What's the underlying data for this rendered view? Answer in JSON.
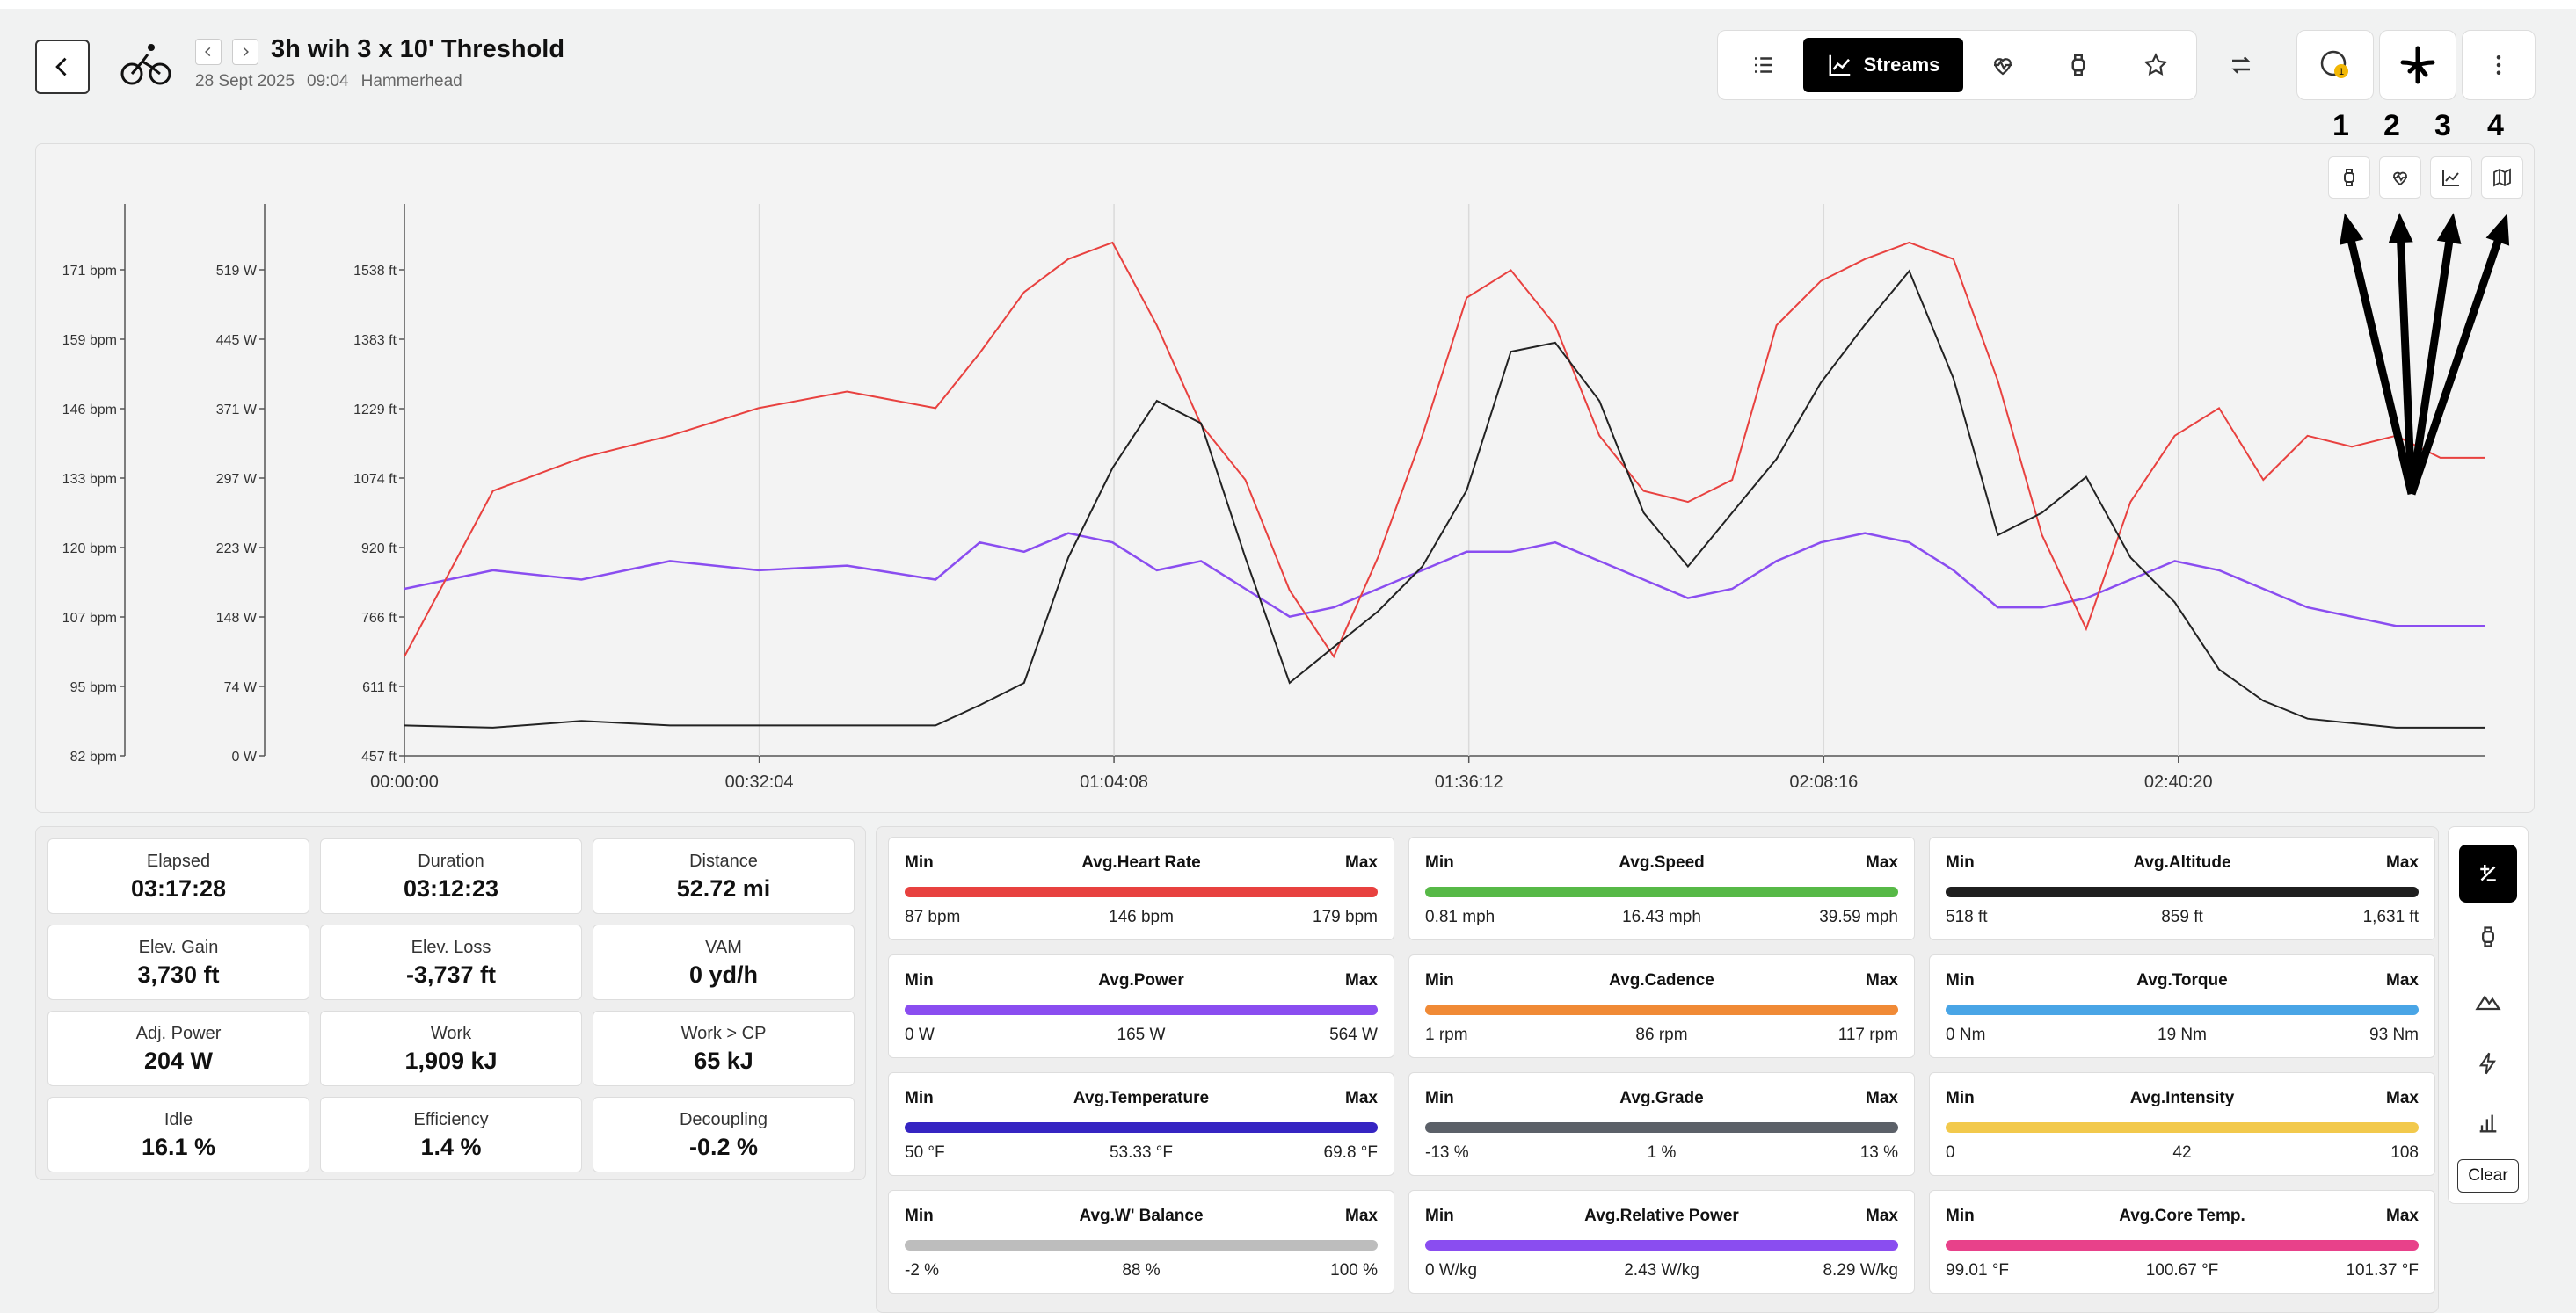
{
  "header": {
    "title": "3h wih 3 x 10' Threshold",
    "date": "28 Sept 2025",
    "time": "09:04",
    "device": "Hammerhead",
    "streams_label": "Streams",
    "notification_count": "1"
  },
  "chart": {
    "annotations": [
      "1",
      "2",
      "3",
      "4"
    ],
    "hr_ticks": [
      "171 bpm",
      "159 bpm",
      "146 bpm",
      "133 bpm",
      "120 bpm",
      "107 bpm",
      "95 bpm",
      "82 bpm"
    ],
    "power_ticks": [
      "519 W",
      "445 W",
      "371 W",
      "297 W",
      "223 W",
      "148 W",
      "74 W",
      "0 W"
    ],
    "alt_ticks": [
      "1538 ft",
      "1383 ft",
      "1229 ft",
      "1074 ft",
      "920 ft",
      "766 ft",
      "611 ft",
      "457 ft"
    ],
    "time_ticks": [
      "00:00:00",
      "00:32:04",
      "01:04:08",
      "01:36:12",
      "02:08:16",
      "02:40:20"
    ],
    "colors": {
      "hr": "#e8413f",
      "power": "#8a4df0",
      "altitude": "#222222"
    }
  },
  "chart_data": {
    "type": "line",
    "x_label_ticks": [
      "00:00:00",
      "00:32:04",
      "01:04:08",
      "01:36:12",
      "02:08:16",
      "02:40:20"
    ],
    "y_axes": [
      {
        "name": "Heart Rate",
        "unit": "bpm",
        "range": [
          82,
          182
        ]
      },
      {
        "name": "Power",
        "unit": "W",
        "range": [
          0,
          595
        ]
      },
      {
        "name": "Altitude",
        "unit": "ft",
        "range": [
          457,
          1690
        ]
      }
    ],
    "x_minutes": [
      0,
      8,
      16,
      24,
      32,
      40,
      48,
      52,
      56,
      60,
      64,
      68,
      72,
      76,
      80,
      84,
      88,
      92,
      96,
      100,
      104,
      108,
      112,
      116,
      120,
      124,
      128,
      132,
      136,
      140,
      144,
      148,
      152,
      156,
      160,
      164,
      168,
      172,
      176,
      180,
      184,
      188
    ],
    "series": [
      {
        "name": "Heart Rate",
        "axis": 0,
        "values": [
          100,
          130,
          136,
          140,
          145,
          148,
          145,
          155,
          166,
          172,
          175,
          160,
          142,
          132,
          112,
          100,
          118,
          140,
          165,
          170,
          160,
          140,
          130,
          128,
          132,
          160,
          168,
          172,
          175,
          172,
          150,
          122,
          105,
          128,
          140,
          145,
          132,
          140,
          138,
          140,
          136,
          136
        ]
      },
      {
        "name": "Power",
        "axis": 1,
        "values": [
          180,
          200,
          190,
          210,
          200,
          205,
          190,
          230,
          220,
          240,
          230,
          200,
          210,
          180,
          150,
          160,
          180,
          200,
          220,
          220,
          230,
          210,
          190,
          170,
          180,
          210,
          230,
          240,
          230,
          200,
          160,
          160,
          170,
          190,
          210,
          200,
          180,
          160,
          150,
          140,
          140,
          140
        ]
      },
      {
        "name": "Altitude",
        "axis": 2,
        "values": [
          525,
          520,
          535,
          525,
          525,
          525,
          525,
          570,
          620,
          900,
          1100,
          1250,
          1200,
          900,
          620,
          700,
          780,
          880,
          1050,
          1360,
          1380,
          1250,
          1000,
          880,
          1000,
          1120,
          1290,
          1420,
          1540,
          1300,
          950,
          1000,
          1080,
          900,
          800,
          650,
          580,
          540,
          530,
          520,
          520,
          520
        ]
      }
    ]
  },
  "stats": [
    {
      "label": "Elapsed",
      "value": "03:17:28"
    },
    {
      "label": "Duration",
      "value": "03:12:23"
    },
    {
      "label": "Distance",
      "value": "52.72 mi"
    },
    {
      "label": "Elev. Gain",
      "value": "3,730 ft"
    },
    {
      "label": "Elev. Loss",
      "value": "-3,737 ft"
    },
    {
      "label": "VAM",
      "value": "0 yd/h"
    },
    {
      "label": "Adj. Power",
      "value": "204 W"
    },
    {
      "label": "Work",
      "value": "1,909 kJ"
    },
    {
      "label": "Work > CP",
      "value": "65 kJ"
    },
    {
      "label": "Idle",
      "value": "16.1 %"
    },
    {
      "label": "Efficiency",
      "value": "1.4 %"
    },
    {
      "label": "Decoupling",
      "value": "-0.2 %"
    }
  ],
  "metrics": [
    {
      "name": "Avg.Heart Rate",
      "min": "87 bpm",
      "avg": "146 bpm",
      "max": "179 bpm",
      "color": "#e8413f"
    },
    {
      "name": "Avg.Speed",
      "min": "0.81 mph",
      "avg": "16.43 mph",
      "max": "39.59 mph",
      "color": "#57b947"
    },
    {
      "name": "Avg.Altitude",
      "min": "518 ft",
      "avg": "859 ft",
      "max": "1,631 ft",
      "color": "#1f1f1f"
    },
    {
      "name": "Avg.Power",
      "min": "0 W",
      "avg": "165 W",
      "max": "564 W",
      "color": "#8a4df0"
    },
    {
      "name": "Avg.Cadence",
      "min": "1 rpm",
      "avg": "86 rpm",
      "max": "117 rpm",
      "color": "#f08a36"
    },
    {
      "name": "Avg.Torque",
      "min": "0 Nm",
      "avg": "19 Nm",
      "max": "93 Nm",
      "color": "#49a5e6"
    },
    {
      "name": "Avg.Temperature",
      "min": "50 °F",
      "avg": "53.33 °F",
      "max": "69.8 °F",
      "color": "#3524c2"
    },
    {
      "name": "Avg.Grade",
      "min": "-13 %",
      "avg": "1 %",
      "max": "13 %",
      "color": "#5b6068"
    },
    {
      "name": "Avg.Intensity",
      "min": "0",
      "avg": "42",
      "max": "108",
      "color": "#f2c94c"
    },
    {
      "name": "Avg.W' Balance",
      "min": "-2 %",
      "avg": "88 %",
      "max": "100 %",
      "color": "#bdbdbd"
    },
    {
      "name": "Avg.Relative Power",
      "min": "0 W/kg",
      "avg": "2.43 W/kg",
      "max": "8.29 W/kg",
      "color": "#8a4df0"
    },
    {
      "name": "Avg.Core Temp.",
      "min": "99.01 °F",
      "avg": "100.67 °F",
      "max": "101.37 °F",
      "color": "#e8418a"
    }
  ],
  "labels": {
    "min": "Min",
    "max": "Max",
    "clear": "Clear"
  }
}
